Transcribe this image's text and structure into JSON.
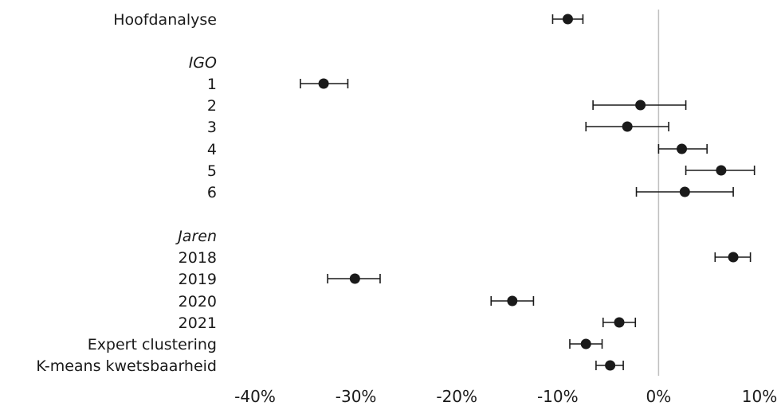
{
  "chart_data": {
    "type": "scatter",
    "title": "",
    "xlabel": "",
    "ylabel": "",
    "xlim": [
      -40,
      10
    ],
    "x_ticks": [
      -40,
      -30,
      -20,
      -10,
      0,
      10
    ],
    "x_tick_labels": [
      "-40%",
      "-30%",
      "-20%",
      "-10%",
      "0%",
      "10%"
    ],
    "reference_line": 0,
    "grid": false,
    "legend": "none",
    "marker_color": "#1a1a1a",
    "reference_line_color": "#bfbfbf",
    "rows": [
      {
        "label": "Hoofdanalyse",
        "estimate": -9.0,
        "lower": -10.5,
        "upper": -7.5
      },
      {
        "label": "IGO",
        "heading": true
      },
      {
        "label": "1",
        "estimate": -33.2,
        "lower": -35.5,
        "upper": -30.8
      },
      {
        "label": "2",
        "estimate": -1.8,
        "lower": -6.5,
        "upper": 2.7
      },
      {
        "label": "3",
        "estimate": -3.1,
        "lower": -7.2,
        "upper": 1.0
      },
      {
        "label": "4",
        "estimate": 2.3,
        "lower": 0.0,
        "upper": 4.8
      },
      {
        "label": "5",
        "estimate": 6.2,
        "lower": 2.7,
        "upper": 9.5
      },
      {
        "label": "6",
        "estimate": 2.6,
        "lower": -2.2,
        "upper": 7.4
      },
      {
        "label": "Jaren",
        "heading": true
      },
      {
        "label": "2018",
        "estimate": 7.4,
        "lower": 5.6,
        "upper": 9.1
      },
      {
        "label": "2019",
        "estimate": -30.1,
        "lower": -32.8,
        "upper": -27.6
      },
      {
        "label": "2020",
        "estimate": -14.5,
        "lower": -16.6,
        "upper": -12.4
      },
      {
        "label": "2021",
        "estimate": -3.9,
        "lower": -5.5,
        "upper": -2.3
      },
      {
        "label": "Expert clustering",
        "estimate": -7.2,
        "lower": -8.8,
        "upper": -5.6
      },
      {
        "label": "K-means kwetsbaarheid",
        "estimate": -4.8,
        "lower": -6.2,
        "upper": -3.5
      }
    ]
  }
}
